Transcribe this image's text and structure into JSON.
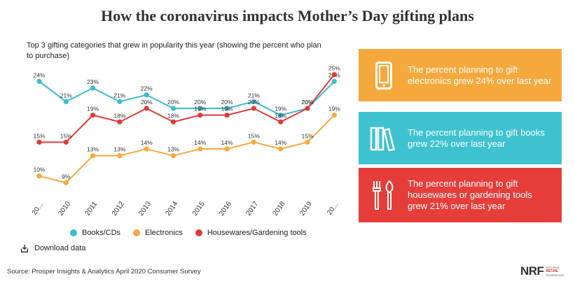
{
  "title": "How the coronavirus impacts Mother’s Day gifting plans",
  "subtitle": "Top 3 gifting categories that grew in popularity this year (showing the percent who plan to purchase)",
  "legend": [
    {
      "label": "Books/CDs",
      "color": "#3bbcce"
    },
    {
      "label": "Electronics",
      "color": "#f5a93d"
    },
    {
      "label": "Housewares/Gardening tools",
      "color": "#e03a3a"
    }
  ],
  "download_label": "Download data",
  "source": "Source: Prosper Insights & Analytics April 2020 Consumer Survey",
  "cards": [
    {
      "text": "The percent planning to gift electronics grew 24% over last year",
      "color": "#f5a93d",
      "icon": "tablet-icon"
    },
    {
      "text": "The percent planning to gift books grew 22% over last year",
      "color": "#3fc2cf",
      "icon": "books-icon"
    },
    {
      "text": "The percent planning to gift housewares or gardening tools grew 21% over last year",
      "color": "#e53e3a",
      "icon": "garden-tools-icon"
    }
  ],
  "logo": {
    "mark": "NRF",
    "line1": "NATIONAL",
    "line2": "RETAIL",
    "line3": "FEDERATION"
  },
  "chart_data": {
    "type": "line",
    "title": "Top 3 gifting categories that grew in popularity this year (showing the percent who plan to purchase)",
    "categories": [
      "20...",
      "2010",
      "2011",
      "2012",
      "2013",
      "2014",
      "2015",
      "2016",
      "2017",
      "2018",
      "2019",
      "20..."
    ],
    "ylim": [
      8,
      26
    ],
    "series": [
      {
        "name": "Books/CDs",
        "color": "#3bbcce",
        "values": [
          24,
          21,
          23,
          21,
          22,
          20,
          20,
          20,
          21,
          19,
          20,
          24
        ]
      },
      {
        "name": "Electronics",
        "color": "#f5a93d",
        "values": [
          10,
          9,
          13,
          13,
          14,
          13,
          14,
          14,
          15,
          14,
          15,
          19
        ]
      },
      {
        "name": "Housewares/Gardening tools",
        "color": "#e03a3a",
        "values": [
          15,
          15,
          19,
          18,
          20,
          18,
          19,
          19,
          20,
          18,
          20,
          25
        ]
      }
    ],
    "legend_position": "bottom"
  }
}
